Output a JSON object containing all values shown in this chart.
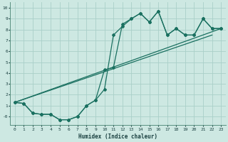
{
  "xlabel": "Humidex (Indice chaleur)",
  "xlim": [
    -0.5,
    23.5
  ],
  "ylim": [
    -0.8,
    10.5
  ],
  "xticks": [
    0,
    1,
    2,
    3,
    4,
    5,
    6,
    7,
    8,
    9,
    10,
    11,
    12,
    13,
    14,
    15,
    16,
    17,
    18,
    19,
    20,
    21,
    22,
    23
  ],
  "yticks": [
    0,
    1,
    2,
    3,
    4,
    5,
    6,
    7,
    8,
    9,
    10
  ],
  "bg_color": "#cde8e2",
  "grid_color": "#aad0c8",
  "line_color": "#1a7060",
  "line_main_x": [
    0,
    1,
    2,
    3,
    4,
    5,
    6,
    7,
    8,
    9,
    10,
    11,
    12,
    13,
    14,
    15,
    16,
    17,
    18,
    19,
    20,
    21,
    22,
    23
  ],
  "line_main_y": [
    1.3,
    1.2,
    0.3,
    0.2,
    0.2,
    -0.3,
    -0.3,
    0.0,
    1.0,
    1.5,
    2.5,
    7.5,
    8.3,
    9.0,
    9.5,
    8.7,
    9.7,
    7.5,
    8.1,
    7.5,
    7.5,
    9.0,
    8.1,
    8.1
  ],
  "line2_x": [
    0,
    1,
    2,
    3,
    4,
    5,
    6,
    7,
    8,
    9,
    10,
    11,
    12,
    13,
    14,
    15,
    16,
    17,
    18,
    19,
    20,
    21,
    22,
    23
  ],
  "line2_y": [
    1.3,
    1.2,
    0.3,
    0.2,
    0.2,
    -0.3,
    -0.3,
    0.0,
    1.0,
    1.5,
    4.3,
    4.5,
    8.5,
    9.0,
    9.5,
    8.7,
    9.7,
    7.5,
    8.1,
    7.5,
    7.5,
    9.0,
    8.1,
    8.1
  ],
  "trend1_x": [
    0,
    23
  ],
  "trend1_y": [
    1.3,
    8.1
  ],
  "trend2_x": [
    0,
    22
  ],
  "trend2_y": [
    1.3,
    7.5
  ]
}
